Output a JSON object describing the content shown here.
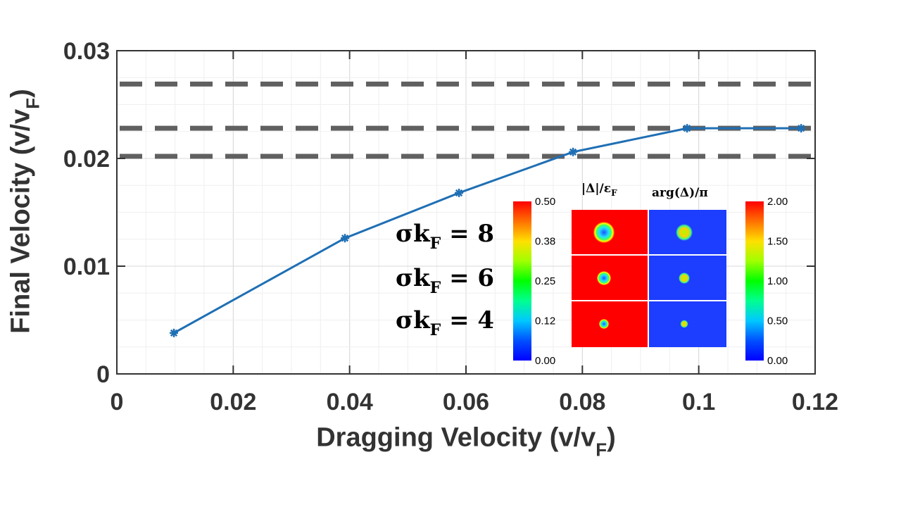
{
  "chart_data": {
    "type": "line",
    "xlabel_main": "Dragging Velocity (v/v",
    "xlabel_sub": "F",
    "xlabel_end": ")",
    "ylabel_main": "Final Velocity (v/v",
    "ylabel_sub": "F",
    "ylabel_end": ")",
    "xlim": [
      0,
      0.12
    ],
    "ylim": [
      0,
      0.03
    ],
    "xticks": [
      "0",
      "0.02",
      "0.04",
      "0.06",
      "0.08",
      "0.1",
      "0.12"
    ],
    "xtick_values": [
      0,
      0.02,
      0.04,
      0.06,
      0.08,
      0.1,
      0.12
    ],
    "yticks": [
      "0",
      "0.01",
      "0.02",
      "0.03"
    ],
    "ytick_values": [
      0,
      0.01,
      0.02,
      0.03
    ],
    "grid": true,
    "series": [
      {
        "x": [
          0.0098,
          0.0392,
          0.0588,
          0.0784,
          0.098,
          0.1176
        ],
        "y": [
          0.0038,
          0.0126,
          0.0168,
          0.0206,
          0.0228,
          0.0228
        ],
        "color": "#1f6fb4",
        "marker": "asterisk"
      }
    ],
    "reference_lines": [
      0.0269,
      0.0228,
      0.0202
    ],
    "reference_color": "#606060",
    "annotations": [
      {
        "main": "σk",
        "sub": "F",
        "end": " = 8"
      },
      {
        "main": "σk",
        "sub": "F",
        "end": " = 6"
      },
      {
        "main": "σk",
        "sub": "F",
        "end": " = 4"
      }
    ],
    "inset": {
      "left_title_main": "|Δ|/ε",
      "left_title_sub": "F",
      "right_title": "arg(Δ)/π",
      "left_colorbar_ticks": [
        "0.50",
        "0.38",
        "0.25",
        "0.12",
        "0.00"
      ],
      "right_colorbar_ticks": [
        "2.00",
        "1.50",
        "1.00",
        "0.50",
        "0.00"
      ]
    }
  }
}
